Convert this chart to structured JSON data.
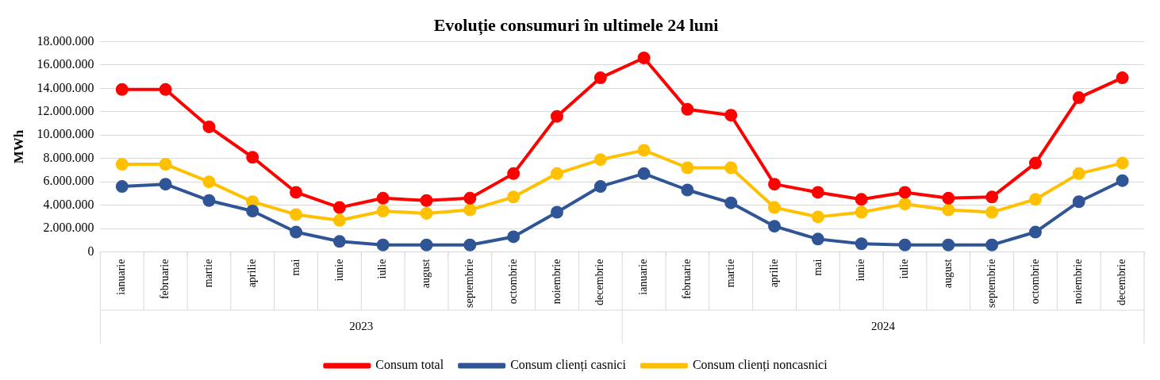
{
  "chart_data": {
    "type": "line",
    "title": "Evoluție consumuri în ultimele 24 luni",
    "ylabel": "MWh",
    "categories": [
      "ianuarie",
      "februarie",
      "martie",
      "aprilie",
      "mai",
      "iunie",
      "iulie",
      "august",
      "septembrie",
      "octombrie",
      "noiembrie",
      "decembrie",
      "ianuarie",
      "februarie",
      "martie",
      "aprilie",
      "mai",
      "iunie",
      "iulie",
      "august",
      "septembrie",
      "octombrie",
      "noiembrie",
      "decembrie"
    ],
    "annotations": [
      "2023",
      "2024"
    ],
    "series": [
      {
        "name": "Consum total",
        "color": "#ff0000",
        "values": [
          13900000,
          13900000,
          10700000,
          8100000,
          5100000,
          3800000,
          4600000,
          4400000,
          4600000,
          6700000,
          11600000,
          14900000,
          16600000,
          12200000,
          11700000,
          5800000,
          5100000,
          4500000,
          5100000,
          4600000,
          4700000,
          7600000,
          13200000,
          14900000
        ]
      },
      {
        "name": "Consum clienți casnici",
        "color": "#2f5597",
        "values": [
          5600000,
          5800000,
          4400000,
          3500000,
          1700000,
          900000,
          600000,
          600000,
          600000,
          1300000,
          3400000,
          5600000,
          6700000,
          5300000,
          4200000,
          2200000,
          1100000,
          700000,
          600000,
          600000,
          600000,
          1700000,
          4300000,
          6100000
        ]
      },
      {
        "name": "Consum clienți noncasnici",
        "color": "#ffc000",
        "values": [
          7500000,
          7500000,
          6000000,
          4300000,
          3200000,
          2700000,
          3500000,
          3300000,
          3600000,
          4700000,
          6700000,
          7900000,
          8700000,
          7200000,
          7200000,
          3800000,
          3000000,
          3400000,
          4100000,
          3600000,
          3400000,
          4500000,
          6700000,
          7600000
        ]
      }
    ],
    "ylim": [
      0,
      18000000
    ],
    "yticks": [
      0,
      {
        "value": 2000000,
        "label": "2.000.000"
      },
      {
        "value": 4000000,
        "label": "4.000.000"
      },
      {
        "value": 6000000,
        "label": "6.000.000"
      },
      {
        "value": 8000000,
        "label": "8.000.000"
      },
      {
        "value": 10000000,
        "label": "10.000.000"
      },
      {
        "value": 12000000,
        "label": "12.000.000"
      },
      {
        "value": 14000000,
        "label": "14.000.000"
      },
      {
        "value": 16000000,
        "label": "16.000.000"
      },
      {
        "value": 18000000,
        "label": "18.000.000"
      }
    ],
    "grid": "y",
    "legend": "bottom",
    "marker": "circle",
    "line_style": "solid"
  }
}
